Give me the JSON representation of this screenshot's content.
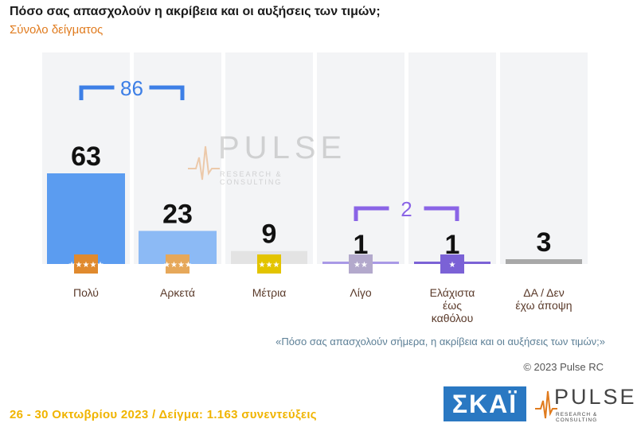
{
  "header": {
    "title": "Πόσο σας απασχολούν η ακρίβεια και οι αυξήσεις των τιμών;",
    "subtitle": "Σύνολο δείγματος"
  },
  "chart_data": {
    "type": "bar",
    "categories": [
      "Πολύ",
      "Αρκετά",
      "Μέτρια",
      "Λίγο",
      "Ελάχιστα έως καθόλου",
      "ΔΑ / Δεν έχω άποψη"
    ],
    "category_lines": [
      [
        "Πολύ"
      ],
      [
        "Αρκετά"
      ],
      [
        "Μέτρια"
      ],
      [
        "Λίγο"
      ],
      [
        "Ελάχιστα",
        "έως",
        "καθόλου"
      ],
      [
        "ΔΑ / Δεν",
        "έχω άποψη"
      ]
    ],
    "values": [
      63,
      23,
      9,
      1,
      1,
      3
    ],
    "star_counts": [
      5,
      4,
      3,
      2,
      1,
      0
    ],
    "ylim": [
      0,
      63
    ],
    "bar_colors": [
      "#5b9cf0",
      "#8cbaf5",
      "#e3e3e3",
      "#a999e6",
      "#7b62d6",
      "#a8a8a8"
    ],
    "badge_colors": [
      "#e08a2e",
      "#e6a85a",
      "#e3c400",
      "#b3a9cc",
      "#7b62d6",
      null
    ],
    "brackets": [
      {
        "label": "86",
        "from": 0,
        "to": 1,
        "color": "#3d7fe6"
      },
      {
        "label": "2",
        "from": 3,
        "to": 4,
        "color": "#8a64e6"
      }
    ]
  },
  "watermark": {
    "word": "PULSE",
    "tag": "RESEARCH & CONSULTING"
  },
  "question_note": "«Πόσο σας απασχολούν σήμερα, η ακρίβεια και οι αυξήσεις των τιμών;»",
  "copyright": "© 2023 Pulse RC",
  "footer": "26 - 30  Οκτωβρίου  2023  /  Δείγμα:  1.163 συνεντεύξεις",
  "logos": {
    "skai": "ΣΚΑΪ",
    "pulse": "PULSE",
    "pulse_tag": "RESEARCH & CONSULTING"
  }
}
